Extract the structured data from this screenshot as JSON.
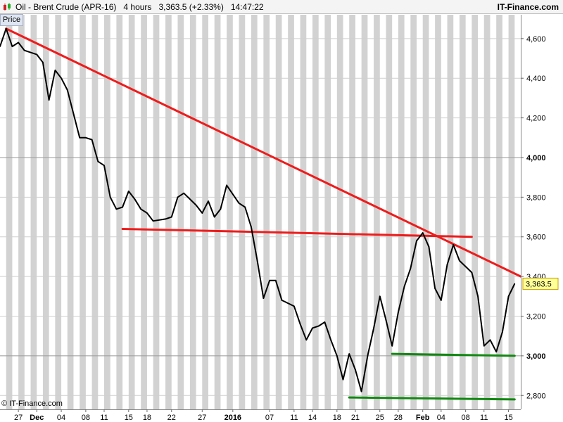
{
  "header": {
    "title": "Oil - Brent Crude (APR-16)",
    "timeframe": "4 hours",
    "price_change": "3,363.5 (+2.33%)",
    "time": "14:47:22",
    "brand": "IT-Finance.com"
  },
  "panel_label": "Price",
  "watermark": "© IT-Finance.com",
  "colors": {
    "price_line": "#000000",
    "resistance": "#ee1c1c",
    "support": "#118811",
    "stripe": "#d2d2d2",
    "marker_bg": "#ffff99"
  },
  "chart_data": {
    "type": "line",
    "title": "Oil - Brent Crude (APR-16)",
    "timeframe": "4 hours",
    "current_price": 3363.5,
    "current_price_label": "3,363.5",
    "ylim": [
      2730,
      4720
    ],
    "yticks": [
      {
        "value": 2800,
        "label": "2,800"
      },
      {
        "value": 3000,
        "label": "3,000",
        "bold": true
      },
      {
        "value": 3200,
        "label": "3,200"
      },
      {
        "value": 3400,
        "label": "3,400"
      },
      {
        "value": 3600,
        "label": "3,600"
      },
      {
        "value": 3800,
        "label": "3,800"
      },
      {
        "value": 4000,
        "label": "4,000",
        "bold": true
      },
      {
        "value": 4200,
        "label": "4,200"
      },
      {
        "value": 4400,
        "label": "4,400"
      },
      {
        "value": 4600,
        "label": "4,600"
      }
    ],
    "xticks": [
      {
        "date": "2015-11-27",
        "label": "27"
      },
      {
        "date": "2015-11-30",
        "label": "Dec",
        "bold": true
      },
      {
        "date": "2015-12-04",
        "label": "04"
      },
      {
        "date": "2015-12-08",
        "label": "08"
      },
      {
        "date": "2015-12-11",
        "label": "11"
      },
      {
        "date": "2015-12-15",
        "label": "15"
      },
      {
        "date": "2015-12-18",
        "label": "18"
      },
      {
        "date": "2015-12-22",
        "label": "22"
      },
      {
        "date": "2015-12-27",
        "label": "27"
      },
      {
        "date": "2016-01-01",
        "label": "2016",
        "bold": true
      },
      {
        "date": "2016-01-07",
        "label": "07"
      },
      {
        "date": "2016-01-11",
        "label": "11"
      },
      {
        "date": "2016-01-14",
        "label": "14"
      },
      {
        "date": "2016-01-18",
        "label": "18"
      },
      {
        "date": "2016-01-21",
        "label": "21"
      },
      {
        "date": "2016-01-25",
        "label": "25"
      },
      {
        "date": "2016-01-28",
        "label": "28"
      },
      {
        "date": "2016-02-01",
        "label": "Feb",
        "bold": true
      },
      {
        "date": "2016-02-04",
        "label": "04"
      },
      {
        "date": "2016-02-08",
        "label": "08"
      },
      {
        "date": "2016-02-11",
        "label": "11"
      },
      {
        "date": "2016-02-15",
        "label": "15"
      }
    ],
    "xlim": [
      "2015-11-24",
      "2016-02-17"
    ],
    "series": [
      {
        "values": [
          [
            "2015-11-24",
            4560
          ],
          [
            "2015-11-25",
            4650
          ],
          [
            "2015-11-26",
            4560
          ],
          [
            "2015-11-27",
            4580
          ],
          [
            "2015-11-28",
            4540
          ],
          [
            "2015-11-30",
            4520
          ],
          [
            "2015-12-01",
            4480
          ],
          [
            "2015-12-02",
            4290
          ],
          [
            "2015-12-03",
            4440
          ],
          [
            "2015-12-04",
            4400
          ],
          [
            "2015-12-05",
            4340
          ],
          [
            "2015-12-07",
            4100
          ],
          [
            "2015-12-08",
            4100
          ],
          [
            "2015-12-09",
            4090
          ],
          [
            "2015-12-10",
            3980
          ],
          [
            "2015-12-11",
            3960
          ],
          [
            "2015-12-12",
            3800
          ],
          [
            "2015-12-13",
            3740
          ],
          [
            "2015-12-14",
            3750
          ],
          [
            "2015-12-15",
            3830
          ],
          [
            "2015-12-16",
            3790
          ],
          [
            "2015-12-17",
            3740
          ],
          [
            "2015-12-18",
            3720
          ],
          [
            "2015-12-19",
            3680
          ],
          [
            "2015-12-21",
            3690
          ],
          [
            "2015-12-22",
            3700
          ],
          [
            "2015-12-23",
            3800
          ],
          [
            "2015-12-24",
            3820
          ],
          [
            "2015-12-26",
            3760
          ],
          [
            "2015-12-27",
            3720
          ],
          [
            "2015-12-28",
            3780
          ],
          [
            "2015-12-29",
            3700
          ],
          [
            "2015-12-30",
            3740
          ],
          [
            "2015-12-31",
            3860
          ],
          [
            "2016-01-02",
            3770
          ],
          [
            "2016-01-03",
            3750
          ],
          [
            "2016-01-04",
            3650
          ],
          [
            "2016-01-05",
            3480
          ],
          [
            "2016-01-06",
            3290
          ],
          [
            "2016-01-07",
            3380
          ],
          [
            "2016-01-08",
            3380
          ],
          [
            "2016-01-09",
            3280
          ],
          [
            "2016-01-11",
            3250
          ],
          [
            "2016-01-12",
            3160
          ],
          [
            "2016-01-13",
            3080
          ],
          [
            "2016-01-14",
            3140
          ],
          [
            "2016-01-15",
            3150
          ],
          [
            "2016-01-16",
            3170
          ],
          [
            "2016-01-17",
            3080
          ],
          [
            "2016-01-18",
            3000
          ],
          [
            "2016-01-19",
            2880
          ],
          [
            "2016-01-20",
            3010
          ],
          [
            "2016-01-21",
            2930
          ],
          [
            "2016-01-22",
            2820
          ],
          [
            "2016-01-23",
            3000
          ],
          [
            "2016-01-24",
            3140
          ],
          [
            "2016-01-25",
            3300
          ],
          [
            "2016-01-26",
            3180
          ],
          [
            "2016-01-27",
            3050
          ],
          [
            "2016-01-28",
            3220
          ],
          [
            "2016-01-29",
            3350
          ],
          [
            "2016-01-30",
            3440
          ],
          [
            "2016-01-31",
            3580
          ],
          [
            "2016-02-01",
            3620
          ],
          [
            "2016-02-02",
            3550
          ],
          [
            "2016-02-03",
            3340
          ],
          [
            "2016-02-04",
            3280
          ],
          [
            "2016-02-05",
            3460
          ],
          [
            "2016-02-06",
            3560
          ],
          [
            "2016-02-07",
            3480
          ],
          [
            "2016-02-08",
            3450
          ],
          [
            "2016-02-09",
            3420
          ],
          [
            "2016-02-10",
            3300
          ],
          [
            "2016-02-11",
            3050
          ],
          [
            "2016-02-12",
            3080
          ],
          [
            "2016-02-13",
            3020
          ],
          [
            "2016-02-14",
            3120
          ],
          [
            "2016-02-15",
            3300
          ],
          [
            "2016-02-16",
            3363.5
          ]
        ]
      }
    ],
    "trendlines": [
      {
        "kind": "resistance",
        "color": "#ee1c1c",
        "from": [
          "2015-11-25",
          4650
        ],
        "to": [
          "2016-02-17",
          3400
        ]
      },
      {
        "kind": "resistance",
        "color": "#ee1c1c",
        "from": [
          "2015-12-14",
          3640
        ],
        "to": [
          "2016-02-09",
          3600
        ]
      },
      {
        "kind": "support",
        "color": "#118811",
        "from": [
          "2016-01-27",
          3010
        ],
        "to": [
          "2016-02-16",
          3000
        ]
      },
      {
        "kind": "support",
        "color": "#118811",
        "from": [
          "2016-01-20",
          2790
        ],
        "to": [
          "2016-02-16",
          2780
        ]
      }
    ],
    "grid": true
  }
}
